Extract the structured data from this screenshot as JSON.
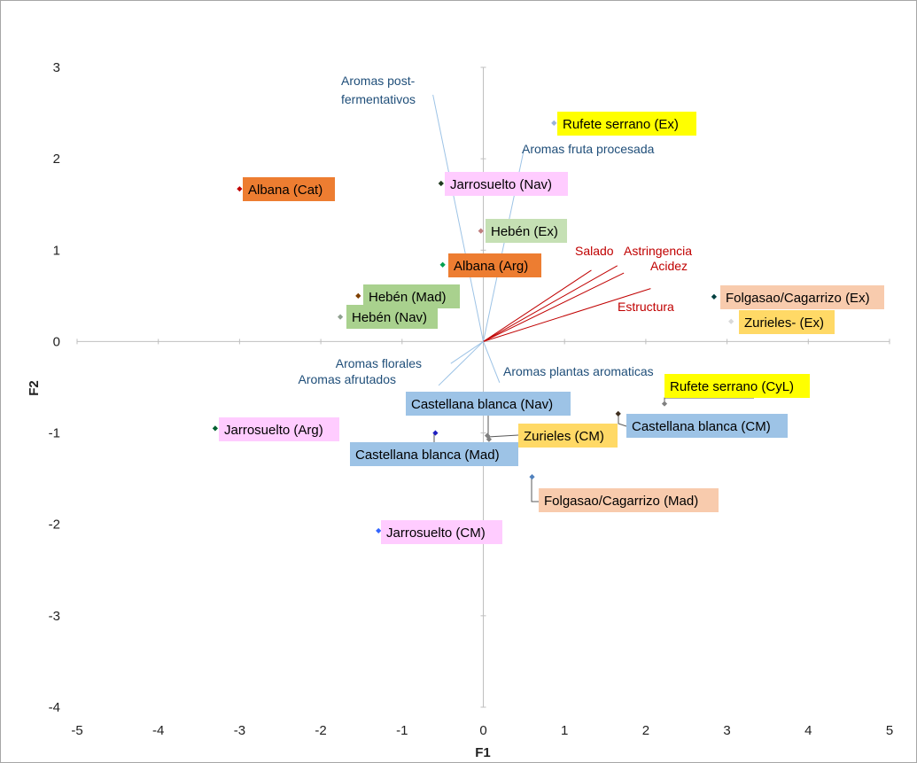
{
  "chart_data": {
    "type": "scatter",
    "xlabel": "F1",
    "ylabel": "F2",
    "xlim": [
      -5,
      5
    ],
    "ylim": [
      -4,
      3
    ],
    "xticks": [
      "-5",
      "-4",
      "-3",
      "-2",
      "-1",
      "0",
      "1",
      "2",
      "3",
      "4",
      "5"
    ],
    "yticks": [
      "-4",
      "-3",
      "-2",
      "-1",
      "0",
      "1",
      "2",
      "3"
    ],
    "grid": false,
    "points": [
      {
        "label": "Rufete serrano (Ex)",
        "x": 0.87,
        "y": 2.39,
        "color": "#9db3d9",
        "bg": "#ffff00"
      },
      {
        "label": "Jarrosuelto (Nav)",
        "x": -0.52,
        "y": 1.73,
        "color": "#1f3a1f",
        "bg": "#ffccff"
      },
      {
        "label": "Albana (Cat)",
        "x": -3.0,
        "y": 1.67,
        "color": "#c00000",
        "bg": "#ed7d31"
      },
      {
        "label": "Hebén (Ex)",
        "x": -0.03,
        "y": 1.21,
        "color": "#c08080",
        "bg": "#c5e0b4"
      },
      {
        "label": "Albana (Arg)",
        "x": -0.5,
        "y": 0.84,
        "color": "#00a050",
        "bg": "#ed7d31"
      },
      {
        "label": "Hebén (Mad)",
        "x": -1.54,
        "y": 0.5,
        "color": "#7f3f00",
        "bg": "#a9d18e"
      },
      {
        "label": "Hebén (Nav)",
        "x": -1.76,
        "y": 0.27,
        "color": "#90a090",
        "bg": "#a9d18e"
      },
      {
        "label": "Folgasao/Cagarrizo (Ex)",
        "x": 2.84,
        "y": 0.49,
        "color": "#004040",
        "bg": "#f8cbad"
      },
      {
        "label": "Zurieles- (Ex)",
        "x": 3.05,
        "y": 0.22,
        "color": "#d9d9d9",
        "bg": "#ffd966"
      },
      {
        "label": "Rufete serrano (CyL)",
        "x": 2.23,
        "y": -0.68,
        "color": "#808080",
        "bg": "#ffff00"
      },
      {
        "label": "Castellana blanca (Nav)",
        "x": 0.05,
        "y": -1.03,
        "color": "#808080",
        "bg": "#9dc3e6"
      },
      {
        "label": "Castellana blanca (CM)",
        "x": 1.66,
        "y": -0.79,
        "color": "#3f2f1f",
        "bg": "#9dc3e6"
      },
      {
        "label": "Zurieles (CM)",
        "x": 0.07,
        "y": -1.07,
        "color": "#808080",
        "bg": "#ffd966"
      },
      {
        "label": "Castellana blanca (Mad)",
        "x": -0.59,
        "y": -1.0,
        "color": "#1f1fc0",
        "bg": "#9dc3e6"
      },
      {
        "label": "Jarrosuelto (Arg)",
        "x": -3.3,
        "y": -0.95,
        "color": "#006030",
        "bg": "#ffccff"
      },
      {
        "label": "Folgasao/Cagarrizo (Mad)",
        "x": 0.6,
        "y": -1.48,
        "color": "#4f81bd",
        "bg": "#f8cbad"
      },
      {
        "label": "Jarrosuelto (CM)",
        "x": -1.29,
        "y": -2.07,
        "color": "#3366ff",
        "bg": "#ffccff"
      }
    ],
    "vectors": [
      {
        "label": "Aromas post-\nfermentativos",
        "x": -0.62,
        "y": 2.7,
        "color": "#9dc3e6",
        "label_color": "#1f4e79"
      },
      {
        "label": "Aromas fruta procesada",
        "x": 0.5,
        "y": 2.1,
        "color": "#9dc3e6",
        "label_color": "#1f4e79"
      },
      {
        "label": "Salado",
        "x": 1.33,
        "y": 0.78,
        "color": "#c00000",
        "label_color": "#c00000"
      },
      {
        "label": "Astringencia",
        "x": 1.65,
        "y": 0.83,
        "color": "#c00000",
        "label_color": "#c00000"
      },
      {
        "label": "Acidez",
        "x": 1.73,
        "y": 0.75,
        "color": "#c00000",
        "label_color": "#c00000"
      },
      {
        "label": "Estructura",
        "x": 2.06,
        "y": 0.58,
        "color": "#c00000",
        "label_color": "#c00000"
      },
      {
        "label": "Aromas florales",
        "x": -0.4,
        "y": -0.24,
        "color": "#9dc3e6",
        "label_color": "#1f4e79"
      },
      {
        "label": "Aromas afrutados",
        "x": -0.55,
        "y": -0.48,
        "color": "#9dc3e6",
        "label_color": "#1f4e79"
      },
      {
        "label": "Aromas plantas aromaticas",
        "x": 0.2,
        "y": -0.45,
        "color": "#9dc3e6",
        "label_color": "#1f4e79"
      }
    ]
  }
}
